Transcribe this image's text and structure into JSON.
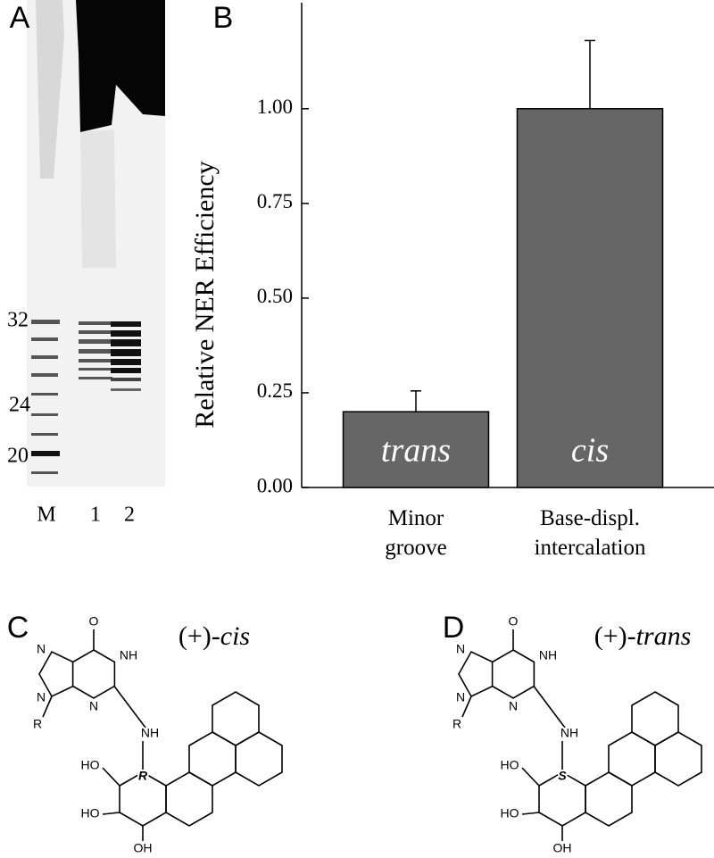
{
  "panels": {
    "a": "A",
    "b": "B",
    "c": "C",
    "d": "D"
  },
  "gel": {
    "lanes": [
      "M",
      "1",
      "2"
    ],
    "markers": [
      "32",
      "24",
      "20"
    ]
  },
  "chart_data": {
    "type": "bar",
    "y_label": "Relative NER Efficiency",
    "categories": [
      "Minor\ngroove",
      "Base-displ.\nintercalation"
    ],
    "bar_labels": [
      "trans",
      "cis"
    ],
    "values": [
      0.2,
      1.0
    ],
    "errors": [
      0.055,
      0.18
    ],
    "color": "#666666",
    "ylim": [
      0,
      1.28
    ],
    "yticks": [
      {
        "value": 0,
        "label": "0.00"
      },
      {
        "value": 0.25,
        "label": "0.25"
      },
      {
        "value": 0.5,
        "label": "0.50"
      },
      {
        "value": 0.75,
        "label": "0.75"
      },
      {
        "value": 1,
        "label": "1.00"
      }
    ]
  },
  "structures": [
    {
      "name_prefix": "(+)-",
      "name_italic": "cis",
      "atoms": [
        "O",
        "N",
        "NH",
        "N",
        "N",
        "R",
        "NH",
        "HO",
        "R",
        "HO",
        "OH"
      ]
    },
    {
      "name_prefix": "(+)-",
      "name_italic": "trans",
      "atoms": [
        "O",
        "N",
        "NH",
        "N",
        "N",
        "R",
        "NH",
        "HO",
        "S",
        "HO",
        "OH"
      ]
    }
  ]
}
